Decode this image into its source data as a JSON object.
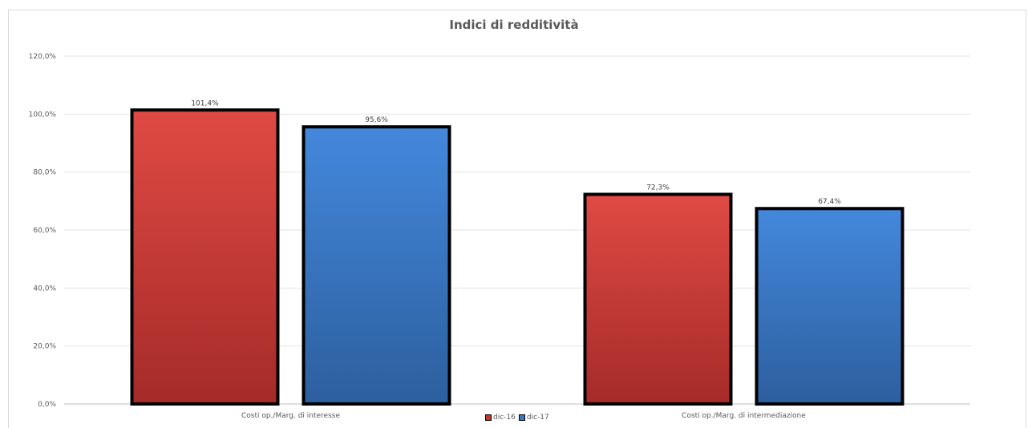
{
  "chart_data": {
    "type": "bar",
    "title": "Indici di redditività",
    "categories": [
      "Costi op./Marg. di interesse",
      "Costi op./Marg. di intermediazione"
    ],
    "series": [
      {
        "name": "dic-16",
        "values": [
          101.4,
          72.3
        ],
        "labels": [
          "101,4%",
          "72,3%"
        ],
        "color": "#c0392b"
      },
      {
        "name": "dic-17",
        "values": [
          95.6,
          67.4
        ],
        "labels": [
          "95,6%",
          "67,4%"
        ],
        "color": "#3a78c4"
      }
    ],
    "yticks": [
      "0,0%",
      "20,0%",
      "40,0%",
      "60,0%",
      "80,0%",
      "100,0%",
      "120,0%"
    ],
    "ylim": [
      0,
      120
    ],
    "grid": true,
    "legend": "bottom-center"
  }
}
